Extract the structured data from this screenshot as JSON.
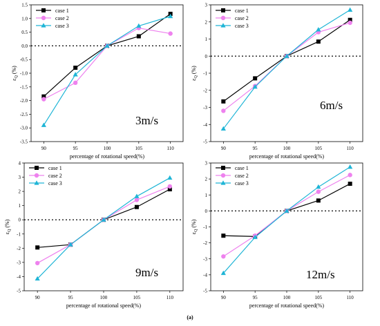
{
  "caption": "(a)",
  "colors": {
    "case1": "#000000",
    "case2": "#ee82ee",
    "case3": "#1fb5d6"
  },
  "chart_data": [
    {
      "type": "line",
      "annotation": "3m/s",
      "xlabel": "percentage of rotational speed(%)",
      "ylabel_main": "ε",
      "ylabel_sub": "Q",
      "ylabel_unit": "(%)",
      "x": [
        90,
        95,
        100,
        105,
        110
      ],
      "ylim": [
        -3.5,
        1.5
      ],
      "yticks": [
        1.5,
        1.0,
        0.5,
        0.0,
        -0.5,
        -1.0,
        -1.5,
        -2.0,
        -2.5,
        -3.0,
        -3.5
      ],
      "ytick_labels": [
        "1.5",
        "1.0",
        "0.5",
        "0.0",
        "-0.5",
        "-1.0",
        "-1.5",
        "-2.0",
        "-2.5",
        "-3.0",
        "-3.5"
      ],
      "reference_line": 0,
      "legend_position": "top-left",
      "series": [
        {
          "name": "case 1",
          "values": [
            -1.85,
            -0.8,
            0.0,
            0.35,
            1.17
          ]
        },
        {
          "name": "case 2",
          "values": [
            -1.95,
            -1.35,
            0.0,
            0.65,
            0.45
          ]
        },
        {
          "name": "case 3",
          "values": [
            -2.9,
            -1.05,
            0.0,
            0.73,
            1.08
          ]
        }
      ]
    },
    {
      "type": "line",
      "annotation": "6m/s",
      "xlabel": "percentage of rotational speed(%)",
      "ylabel_main": "ε",
      "ylabel_sub": "Q",
      "ylabel_unit": "(%)",
      "x": [
        90,
        95,
        100,
        105,
        110
      ],
      "ylim": [
        -5,
        3
      ],
      "yticks": [
        3,
        2,
        1,
        0,
        -1,
        -2,
        -3,
        -4,
        -5
      ],
      "ytick_labels": [
        "3",
        "2",
        "1",
        "0",
        "-1",
        "-2",
        "-3",
        "-4",
        "-5"
      ],
      "reference_line": 0,
      "legend_position": "top-left",
      "series": [
        {
          "name": "case 1",
          "values": [
            -2.65,
            -1.3,
            0.0,
            0.85,
            2.12
          ]
        },
        {
          "name": "case 2",
          "values": [
            -3.2,
            -1.75,
            0.0,
            1.4,
            1.95
          ]
        },
        {
          "name": "case 3",
          "values": [
            -4.25,
            -1.8,
            0.0,
            1.55,
            2.7
          ]
        }
      ]
    },
    {
      "type": "line",
      "annotation": "9m/s",
      "xlabel": "percentage of rotational speed(%)",
      "ylabel_main": "ε",
      "ylabel_sub": "Q",
      "ylabel_unit": "(%)",
      "x": [
        90,
        95,
        100,
        105,
        110
      ],
      "ylim": [
        -5,
        4
      ],
      "yticks": [
        4,
        3,
        2,
        1,
        0,
        -1,
        -2,
        -3,
        -4,
        -5
      ],
      "ytick_labels": [
        "4",
        "3",
        "2",
        "1",
        "0",
        "-1",
        "-2",
        "-3",
        "-4",
        "-5"
      ],
      "reference_line": 0,
      "legend_position": "top-left",
      "series": [
        {
          "name": "case 1",
          "values": [
            -1.95,
            -1.75,
            0.0,
            0.9,
            2.15
          ]
        },
        {
          "name": "case 2",
          "values": [
            -3.05,
            -1.75,
            0.0,
            1.4,
            2.35
          ]
        },
        {
          "name": "case 3",
          "values": [
            -4.15,
            -1.75,
            0.0,
            1.65,
            2.95
          ]
        }
      ]
    },
    {
      "type": "line",
      "annotation": "12m/s",
      "xlabel": "percentage of rotational speed(%)",
      "ylabel_main": "ε",
      "ylabel_sub": "Q",
      "ylabel_unit": "(%)",
      "x": [
        90,
        95,
        100,
        105,
        110
      ],
      "ylim": [
        -5,
        3
      ],
      "yticks": [
        3,
        2,
        1,
        0,
        -1,
        -2,
        -3,
        -4,
        -5
      ],
      "ytick_labels": [
        "3",
        "2",
        "1",
        "0",
        "-1",
        "-2",
        "-3",
        "-4",
        "-5"
      ],
      "reference_line": 0,
      "legend_position": "top-left",
      "series": [
        {
          "name": "case 1",
          "values": [
            -1.55,
            -1.6,
            0.0,
            0.65,
            1.7
          ]
        },
        {
          "name": "case 2",
          "values": [
            -2.85,
            -1.55,
            0.0,
            1.2,
            2.25
          ]
        },
        {
          "name": "case 3",
          "values": [
            -3.9,
            -1.65,
            0.0,
            1.5,
            2.75
          ]
        }
      ]
    }
  ]
}
